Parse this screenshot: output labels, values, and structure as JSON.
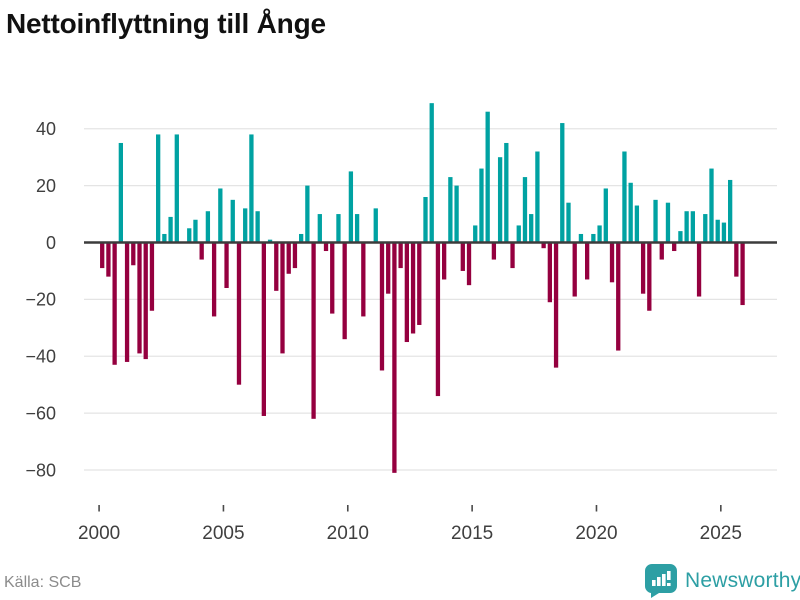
{
  "title": "Nettoinflyttning till Ånge",
  "source": "Källa: SCB",
  "logo": {
    "text": "Newsworthy",
    "icon": "bar-chart-speech-bubble-icon"
  },
  "colors": {
    "positive": "#00a2a2",
    "negative": "#95003f",
    "logo_teal": "#2d9fa4",
    "grid": "#e4e4e4",
    "zero_line": "#3c3c3c",
    "axis_text": "#3f3f3f",
    "source_text": "#8b8b8b"
  },
  "chart_data": {
    "type": "bar",
    "title": "Nettoinflyttning till Ånge",
    "frequency": "quarterly",
    "start_year": 2000,
    "end_year": 2025,
    "values": [
      -9,
      -12,
      -43,
      35,
      -42,
      -8,
      -39,
      -41,
      -24,
      38,
      3,
      9,
      38,
      0,
      5,
      8,
      -6,
      11,
      -26,
      19,
      -16,
      15,
      -50,
      12,
      38,
      11,
      -61,
      1,
      -17,
      -39,
      -11,
      -9,
      3,
      20,
      -62,
      10,
      -3,
      -25,
      10,
      -34,
      25,
      10,
      -26,
      0,
      12,
      -45,
      -18,
      -81,
      -9,
      -35,
      -32,
      -29,
      16,
      49,
      -54,
      -13,
      23,
      20,
      -10,
      -15,
      6,
      26,
      46,
      -6,
      30,
      35,
      -9,
      6,
      23,
      10,
      32,
      -2,
      -21,
      -44,
      42,
      14,
      -19,
      3,
      -13,
      3,
      6,
      19,
      -14,
      -38,
      32,
      21,
      13,
      -18,
      -24,
      15,
      -6,
      14,
      -3,
      4,
      11,
      11,
      -19,
      10,
      26,
      8,
      7,
      22,
      -12,
      -22
    ],
    "y_ticks": [
      40,
      20,
      0,
      -20,
      -40,
      -60,
      -80
    ],
    "x_ticks": [
      2000,
      2005,
      2010,
      2015,
      2020,
      2025
    ],
    "ylim": [
      -88,
      52
    ],
    "grid": true,
    "legend": "none",
    "xlabel": "",
    "ylabel": ""
  }
}
